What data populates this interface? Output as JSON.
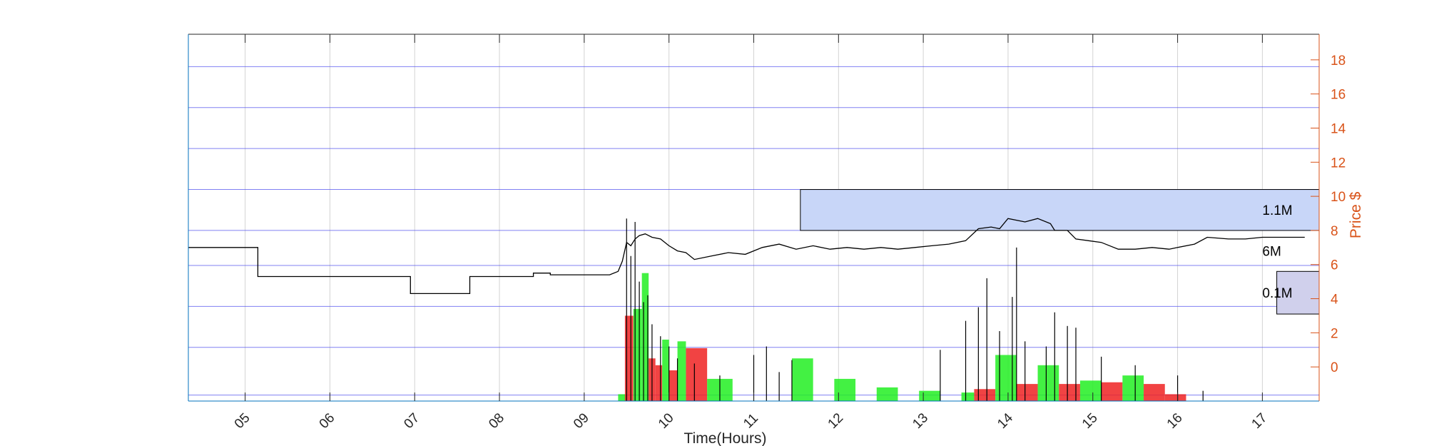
{
  "chart_data": {
    "type": "line",
    "xlabel": "Time(Hours)",
    "ylabel": "Price $",
    "xlim": [
      4.33,
      17.67
    ],
    "ylim": [
      -2,
      19.5
    ],
    "x_ticks": [
      {
        "value": 5,
        "label": "05"
      },
      {
        "value": 6,
        "label": "06"
      },
      {
        "value": 7,
        "label": "07"
      },
      {
        "value": 8,
        "label": "08"
      },
      {
        "value": 9,
        "label": "09"
      },
      {
        "value": 10,
        "label": "10"
      },
      {
        "value": 11,
        "label": "11"
      },
      {
        "value": 12,
        "label": "12"
      },
      {
        "value": 13,
        "label": "13"
      },
      {
        "value": 14,
        "label": "14"
      },
      {
        "value": 15,
        "label": "15"
      },
      {
        "value": 16,
        "label": "16"
      },
      {
        "value": 17,
        "label": "17"
      }
    ],
    "y_ticks": [
      0,
      2,
      4,
      6,
      8,
      10,
      12,
      14,
      16,
      18
    ],
    "grid": true,
    "price_series": [
      [
        4.33,
        7.0
      ],
      [
        5.15,
        7.0
      ],
      [
        5.15,
        5.3
      ],
      [
        6.95,
        5.3
      ],
      [
        6.95,
        4.3
      ],
      [
        7.65,
        4.3
      ],
      [
        7.65,
        5.3
      ],
      [
        8.4,
        5.3
      ],
      [
        8.4,
        5.5
      ],
      [
        8.6,
        5.5
      ],
      [
        8.6,
        5.4
      ],
      [
        9.3,
        5.4
      ],
      [
        9.4,
        5.6
      ],
      [
        9.45,
        6.2
      ],
      [
        9.5,
        7.3
      ],
      [
        9.55,
        7.1
      ],
      [
        9.6,
        7.5
      ],
      [
        9.65,
        7.7
      ],
      [
        9.72,
        7.8
      ],
      [
        9.8,
        7.6
      ],
      [
        9.9,
        7.5
      ],
      [
        10.0,
        7.1
      ],
      [
        10.1,
        6.8
      ],
      [
        10.2,
        6.7
      ],
      [
        10.3,
        6.3
      ],
      [
        10.5,
        6.5
      ],
      [
        10.7,
        6.7
      ],
      [
        10.9,
        6.6
      ],
      [
        11.1,
        7.0
      ],
      [
        11.3,
        7.2
      ],
      [
        11.5,
        6.9
      ],
      [
        11.7,
        7.1
      ],
      [
        11.9,
        6.9
      ],
      [
        12.1,
        7.0
      ],
      [
        12.3,
        6.9
      ],
      [
        12.5,
        7.0
      ],
      [
        12.7,
        6.9
      ],
      [
        12.9,
        7.0
      ],
      [
        13.1,
        7.1
      ],
      [
        13.3,
        7.2
      ],
      [
        13.5,
        7.4
      ],
      [
        13.65,
        8.1
      ],
      [
        13.8,
        8.2
      ],
      [
        13.9,
        8.1
      ],
      [
        14.0,
        8.7
      ],
      [
        14.2,
        8.5
      ],
      [
        14.35,
        8.7
      ],
      [
        14.5,
        8.4
      ],
      [
        14.55,
        8.0
      ],
      [
        14.7,
        8.0
      ],
      [
        14.8,
        7.5
      ],
      [
        14.95,
        7.4
      ],
      [
        15.1,
        7.3
      ],
      [
        15.3,
        6.9
      ],
      [
        15.5,
        6.9
      ],
      [
        15.7,
        7.0
      ],
      [
        15.9,
        6.9
      ],
      [
        16.0,
        7.0
      ],
      [
        16.2,
        7.2
      ],
      [
        16.35,
        7.6
      ],
      [
        16.6,
        7.5
      ],
      [
        16.8,
        7.5
      ],
      [
        17.0,
        7.6
      ],
      [
        17.5,
        7.6
      ]
    ],
    "volume_bars": [
      {
        "x0": 9.4,
        "x1": 9.5,
        "y": -1.6,
        "color": "#22EE22"
      },
      {
        "x0": 9.48,
        "x1": 9.58,
        "y": 3.0,
        "color": "#EE2222"
      },
      {
        "x0": 9.58,
        "x1": 9.68,
        "y": 3.4,
        "color": "#22EE22"
      },
      {
        "x0": 9.68,
        "x1": 9.76,
        "y": 5.5,
        "color": "#22EE22"
      },
      {
        "x0": 9.76,
        "x1": 9.84,
        "y": 0.5,
        "color": "#EE2222"
      },
      {
        "x0": 9.84,
        "x1": 9.92,
        "y": 0.1,
        "color": "#EE2222"
      },
      {
        "x0": 9.92,
        "x1": 10.0,
        "y": 1.6,
        "color": "#22EE22"
      },
      {
        "x0": 10.0,
        "x1": 10.1,
        "y": -0.2,
        "color": "#EE2222"
      },
      {
        "x0": 10.1,
        "x1": 10.2,
        "y": 1.5,
        "color": "#22EE22"
      },
      {
        "x0": 10.2,
        "x1": 10.45,
        "y": 1.1,
        "color": "#EE2222"
      },
      {
        "x0": 10.45,
        "x1": 10.75,
        "y": -0.7,
        "color": "#22EE22"
      },
      {
        "x0": 11.45,
        "x1": 11.7,
        "y": 0.5,
        "color": "#22EE22"
      },
      {
        "x0": 11.95,
        "x1": 12.2,
        "y": -0.7,
        "color": "#22EE22"
      },
      {
        "x0": 12.45,
        "x1": 12.7,
        "y": -1.2,
        "color": "#22EE22"
      },
      {
        "x0": 12.95,
        "x1": 13.2,
        "y": -1.4,
        "color": "#22EE22"
      },
      {
        "x0": 13.45,
        "x1": 13.6,
        "y": -1.5,
        "color": "#22EE22"
      },
      {
        "x0": 13.6,
        "x1": 13.85,
        "y": -1.3,
        "color": "#EE2222"
      },
      {
        "x0": 13.85,
        "x1": 14.1,
        "y": 0.7,
        "color": "#22EE22"
      },
      {
        "x0": 14.1,
        "x1": 14.35,
        "y": -1.0,
        "color": "#EE2222"
      },
      {
        "x0": 14.35,
        "x1": 14.6,
        "y": 0.1,
        "color": "#22EE22"
      },
      {
        "x0": 14.6,
        "x1": 14.85,
        "y": -1.0,
        "color": "#EE2222"
      },
      {
        "x0": 14.85,
        "x1": 15.1,
        "y": -0.8,
        "color": "#22EE22"
      },
      {
        "x0": 15.1,
        "x1": 15.35,
        "y": -0.9,
        "color": "#EE2222"
      },
      {
        "x0": 15.35,
        "x1": 15.6,
        "y": -0.5,
        "color": "#22EE22"
      },
      {
        "x0": 15.6,
        "x1": 15.85,
        "y": -1.0,
        "color": "#EE2222"
      },
      {
        "x0": 15.85,
        "x1": 16.1,
        "y": -1.6,
        "color": "#EE2222"
      }
    ],
    "volume_spikes": [
      {
        "x": 9.5,
        "y": 8.7
      },
      {
        "x": 9.55,
        "y": 6.5
      },
      {
        "x": 9.6,
        "y": 8.5
      },
      {
        "x": 9.65,
        "y": 5.0
      },
      {
        "x": 9.7,
        "y": 3.8
      },
      {
        "x": 9.75,
        "y": 4.2
      },
      {
        "x": 9.8,
        "y": 2.5
      },
      {
        "x": 9.9,
        "y": 1.8
      },
      {
        "x": 10.0,
        "y": 1.2
      },
      {
        "x": 10.1,
        "y": 0.5
      },
      {
        "x": 10.3,
        "y": 0.2
      },
      {
        "x": 10.6,
        "y": -0.5
      },
      {
        "x": 11.0,
        "y": 0.7
      },
      {
        "x": 11.15,
        "y": 1.2
      },
      {
        "x": 11.3,
        "y": -0.3
      },
      {
        "x": 11.45,
        "y": 0.4
      },
      {
        "x": 13.2,
        "y": 1.0
      },
      {
        "x": 13.5,
        "y": 2.7
      },
      {
        "x": 13.65,
        "y": 3.5
      },
      {
        "x": 13.75,
        "y": 5.2
      },
      {
        "x": 13.9,
        "y": 2.1
      },
      {
        "x": 14.05,
        "y": 4.1
      },
      {
        "x": 14.1,
        "y": 7.0
      },
      {
        "x": 14.2,
        "y": 1.5
      },
      {
        "x": 14.45,
        "y": 1.2
      },
      {
        "x": 14.55,
        "y": 3.2
      },
      {
        "x": 14.7,
        "y": 2.4
      },
      {
        "x": 14.8,
        "y": 2.3
      },
      {
        "x": 15.1,
        "y": 0.6
      },
      {
        "x": 15.5,
        "y": 0.1
      },
      {
        "x": 16.0,
        "y": -0.5
      },
      {
        "x": 16.3,
        "y": -1.4
      }
    ],
    "volume_regions": [
      {
        "label": "1.1M",
        "x0": 11.55,
        "x1": 17.67,
        "y0": 8.0,
        "y1": 10.4,
        "fill": "#C8D6F8",
        "stroke": "#000000"
      },
      {
        "label": "6M",
        "x0": 17.67,
        "x1": 17.67,
        "y0": 5.6,
        "y1": 8.0,
        "fill": "#C8D6F8",
        "stroke": "#000000"
      },
      {
        "label": "0.1M",
        "x0": 17.17,
        "x1": 17.67,
        "y0": 3.1,
        "y1": 5.6,
        "fill": "#D0D0EC",
        "stroke": "#000000"
      }
    ],
    "horizontal_gridlines": [
      -1.65,
      1.15,
      3.55,
      5.95,
      8.0,
      10.4,
      12.8,
      15.2,
      17.6
    ],
    "colors": {
      "price_line": "#000000",
      "right_axis": "#D95319",
      "grid": "#5555EE",
      "vertical_grid": "#D3D3D3",
      "frame_left": "#0072BD",
      "frame_top": "#262626"
    }
  }
}
